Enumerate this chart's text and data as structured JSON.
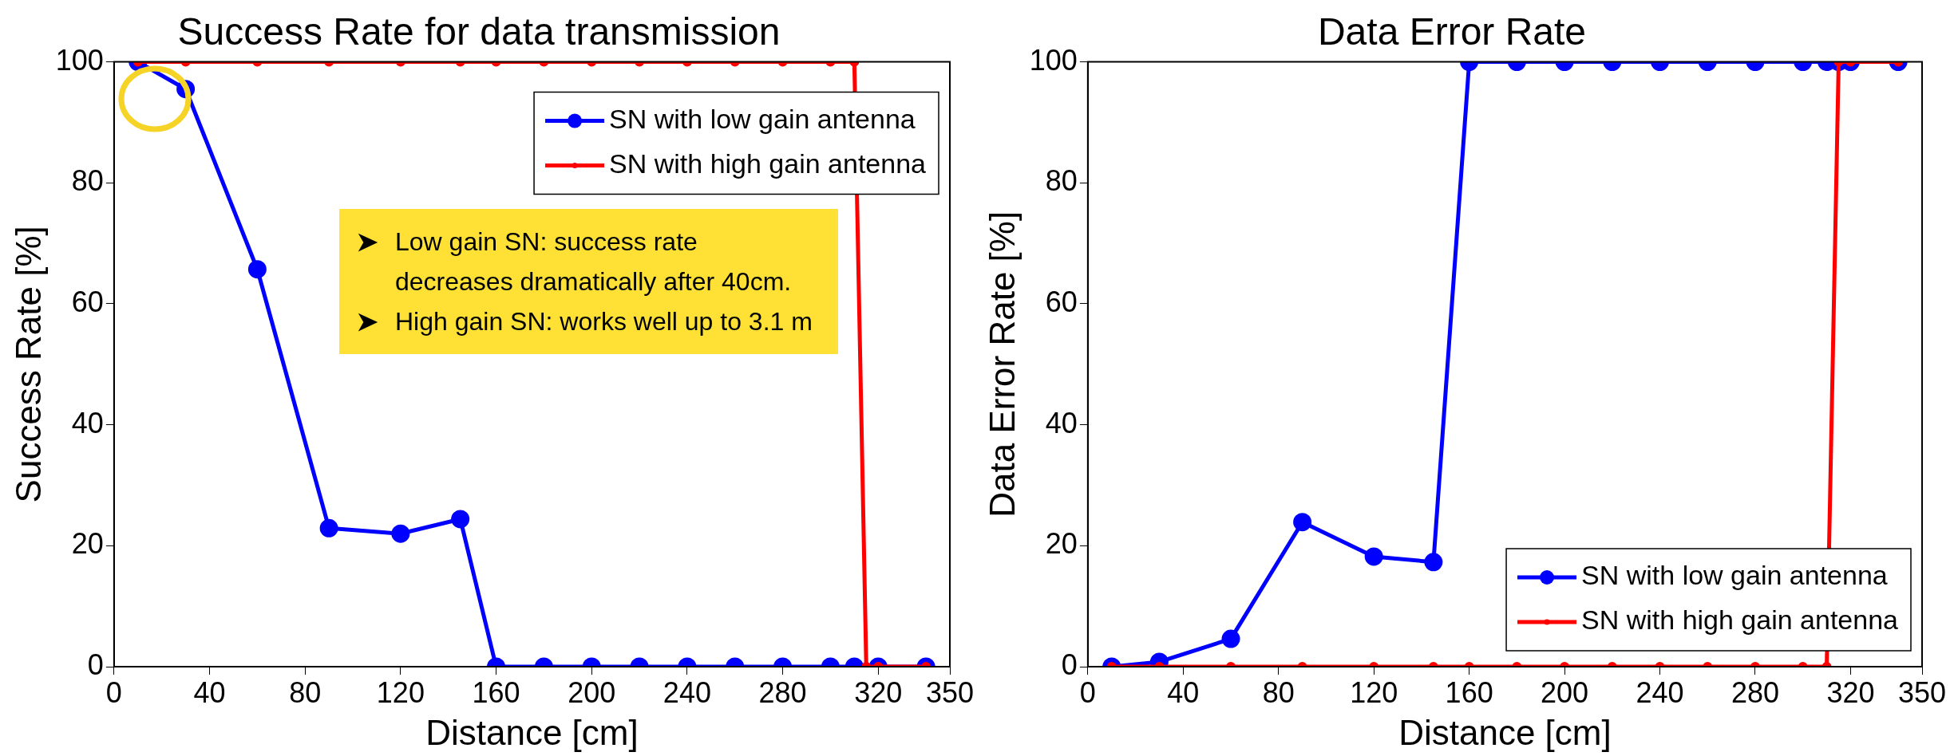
{
  "chart_data": [
    {
      "type": "line",
      "title": "Success Rate for data transmission",
      "xlabel": "Distance [cm]",
      "ylabel": "Success Rate [%]",
      "xlim": [
        0,
        350
      ],
      "xticks": [
        0,
        40,
        80,
        120,
        160,
        200,
        240,
        280,
        320,
        350
      ],
      "ylim": [
        0,
        100
      ],
      "yticks": [
        0,
        20,
        40,
        60,
        80,
        100
      ],
      "grid": false,
      "legend": "top right",
      "marker": "circle",
      "line_style": "solid",
      "series": [
        {
          "name": "SN with low gain antenna",
          "color": "#0000ff",
          "x": [
            10,
            30,
            60,
            90,
            120,
            145,
            160,
            180,
            200,
            220,
            240,
            260,
            280,
            300,
            310,
            320,
            340
          ],
          "values": [
            100,
            95.5,
            65.7,
            22.9,
            22,
            24.4,
            0,
            0,
            0,
            0,
            0,
            0,
            0,
            0,
            0,
            0,
            0
          ]
        },
        {
          "name": "SN with high gain antenna",
          "color": "#ff0000",
          "x": [
            10,
            30,
            60,
            90,
            120,
            145,
            160,
            180,
            200,
            220,
            240,
            260,
            280,
            300,
            310,
            315,
            320,
            340
          ],
          "values": [
            100,
            100,
            100,
            100,
            100,
            100,
            100,
            100,
            100,
            100,
            100,
            100,
            100,
            100,
            100,
            0,
            0,
            0
          ]
        }
      ],
      "annotations": [
        "Low gain SN: success rate decreases dramatically after 40cm.",
        "High gain SN: works well up to 3.1 m"
      ]
    },
    {
      "type": "line",
      "title": "Data Error Rate",
      "xlabel": "Distance [cm]",
      "ylabel": "Data Error Rate [%]",
      "xlim": [
        0,
        350
      ],
      "xticks": [
        0,
        40,
        80,
        120,
        160,
        200,
        240,
        280,
        320,
        350
      ],
      "ylim": [
        0,
        100
      ],
      "yticks": [
        0,
        20,
        40,
        60,
        80,
        100
      ],
      "grid": false,
      "legend": "bottom right",
      "marker": "circle",
      "line_style": "solid",
      "series": [
        {
          "name": "SN with low gain antenna",
          "color": "#0000ff",
          "x": [
            10,
            30,
            60,
            90,
            120,
            145,
            160,
            180,
            200,
            220,
            240,
            260,
            280,
            300,
            310,
            315,
            320,
            340
          ],
          "values": [
            0,
            0.8,
            4.6,
            23.9,
            18.2,
            17.3,
            100,
            100,
            100,
            100,
            100,
            100,
            100,
            100,
            100,
            100,
            100,
            100
          ]
        },
        {
          "name": "SN with high gain antenna",
          "color": "#ff0000",
          "x": [
            10,
            30,
            60,
            90,
            120,
            145,
            160,
            180,
            200,
            220,
            240,
            260,
            280,
            300,
            310,
            315,
            320,
            340
          ],
          "values": [
            0,
            0,
            0,
            0,
            0,
            0,
            0,
            0,
            0,
            0,
            0,
            0,
            0,
            0,
            0,
            100,
            100,
            100
          ]
        }
      ]
    }
  ]
}
